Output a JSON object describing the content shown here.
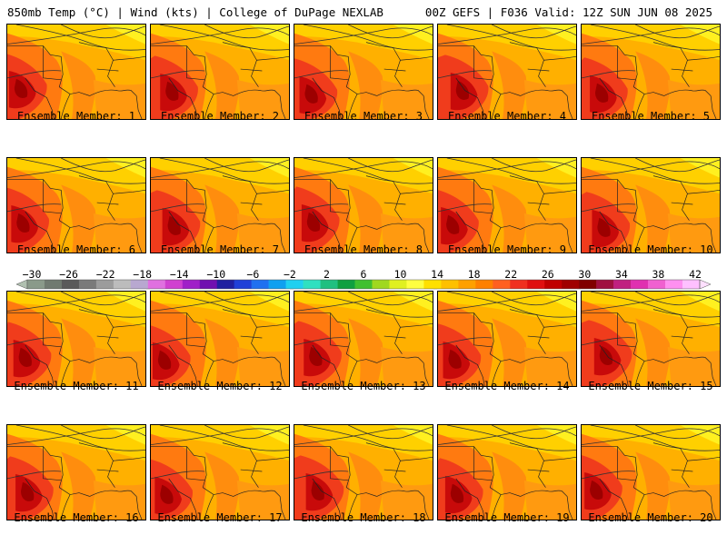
{
  "header": {
    "left": "850mb Temp (°C) | Wind (kts) | College of DuPage NEXLAB",
    "right": "00Z GEFS | F036 Valid: 12Z SUN JUN 08 2025"
  },
  "panels": [
    {
      "label": "Ensemble Member: 1"
    },
    {
      "label": "Ensemble Member: 2"
    },
    {
      "label": "Ensemble Member: 3"
    },
    {
      "label": "Ensemble Member: 4"
    },
    {
      "label": "Ensemble Member: 5"
    },
    {
      "label": "Ensemble Member: 6"
    },
    {
      "label": "Ensemble Member: 7"
    },
    {
      "label": "Ensemble Member: 8"
    },
    {
      "label": "Ensemble Member: 9"
    },
    {
      "label": "Ensemble Member: 10"
    },
    {
      "label": "Ensemble Member: 11"
    },
    {
      "label": "Ensemble Member: 12"
    },
    {
      "label": "Ensemble Member: 13"
    },
    {
      "label": "Ensemble Member: 14"
    },
    {
      "label": "Ensemble Member: 15"
    },
    {
      "label": "Ensemble Member: 16"
    },
    {
      "label": "Ensemble Member: 17"
    },
    {
      "label": "Ensemble Member: 18"
    },
    {
      "label": "Ensemble Member: 19"
    },
    {
      "label": "Ensemble Member: 20"
    }
  ],
  "colorbar": {
    "tick_labels": [
      "-30",
      "-26",
      "-22",
      "-18",
      "-14",
      "-10",
      "-6",
      "-2",
      "2",
      "6",
      "10",
      "14",
      "18",
      "22",
      "26",
      "30",
      "34",
      "38",
      "42"
    ],
    "colors": [
      "#8a9a8a",
      "#707a70",
      "#5a5a5a",
      "#7a7a7a",
      "#9c9c9c",
      "#bcbcbc",
      "#b8a8d0",
      "#e070e0",
      "#d040d0",
      "#a020c8",
      "#7010b0",
      "#2020a0",
      "#2040d8",
      "#2070f0",
      "#10a0f0",
      "#20d0f0",
      "#30e0c0",
      "#20c080",
      "#10a040",
      "#40c030",
      "#a0d820",
      "#e0f020",
      "#ffff40",
      "#ffe000",
      "#ffc000",
      "#ffa000",
      "#ff8000",
      "#ff6020",
      "#f03020",
      "#e01010",
      "#c00000",
      "#a00000",
      "#800000",
      "#a01040",
      "#c02080",
      "#e030b0",
      "#f060d0",
      "#ff90f0",
      "#ffc0ff"
    ]
  }
}
